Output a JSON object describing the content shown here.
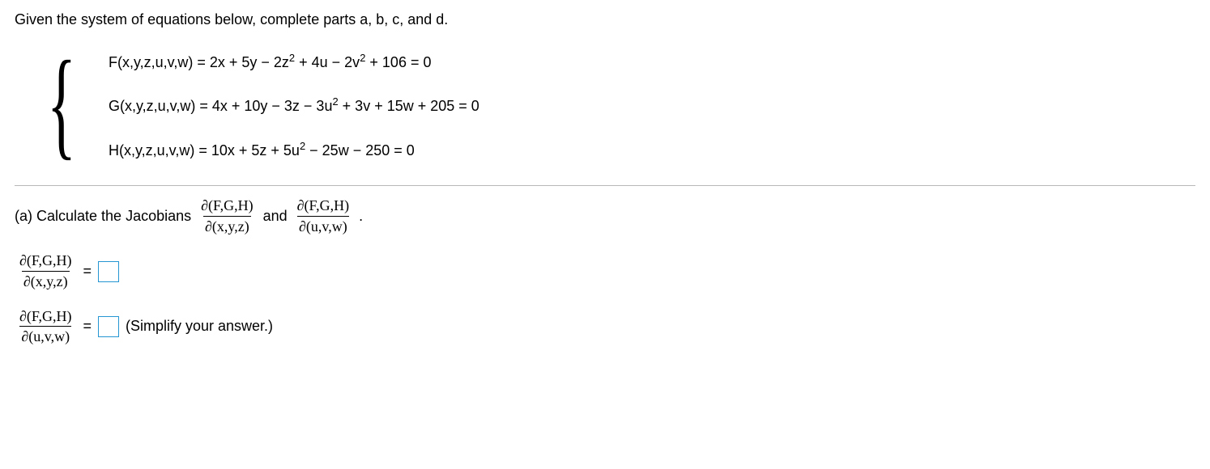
{
  "intro": "Given the system of equations below, complete parts a, b, c, and d.",
  "system": {
    "F": {
      "lhs": "F(x,y,z,u,v,w) = 2x + 5y − 2z",
      "exp1": "2",
      "mid": " + 4u − 2v",
      "exp2": "2",
      "tail": " + 106 = 0"
    },
    "G": {
      "lhs": "G(x,y,z,u,v,w) = 4x + 10y − 3z − 3u",
      "exp1": "2",
      "tail": " + 3v + 15w + 205 = 0"
    },
    "H": {
      "lhs": "H(x,y,z,u,v,w) = 10x + 5z + 5u",
      "exp1": "2",
      "tail": " − 25w − 250 = 0"
    }
  },
  "part_a": {
    "label": "(a) Calculate the Jacobians ",
    "and": " and ",
    "period": ".",
    "jac1": {
      "num": "∂(F,G,H)",
      "den": "∂(x,y,z)"
    },
    "jac2": {
      "num": "∂(F,G,H)",
      "den": "∂(u,v,w)"
    }
  },
  "answers": {
    "eq": "= ",
    "simplify": "(Simplify your answer.)",
    "jac1": {
      "num": "∂(F,G,H)",
      "den": "∂(x,y,z)"
    },
    "jac2": {
      "num": "∂(F,G,H)",
      "den": "∂(u,v,w)"
    }
  },
  "colors": {
    "input_border": "#2596d1",
    "divider": "#b8b8b8",
    "text": "#000000",
    "background": "#ffffff"
  }
}
